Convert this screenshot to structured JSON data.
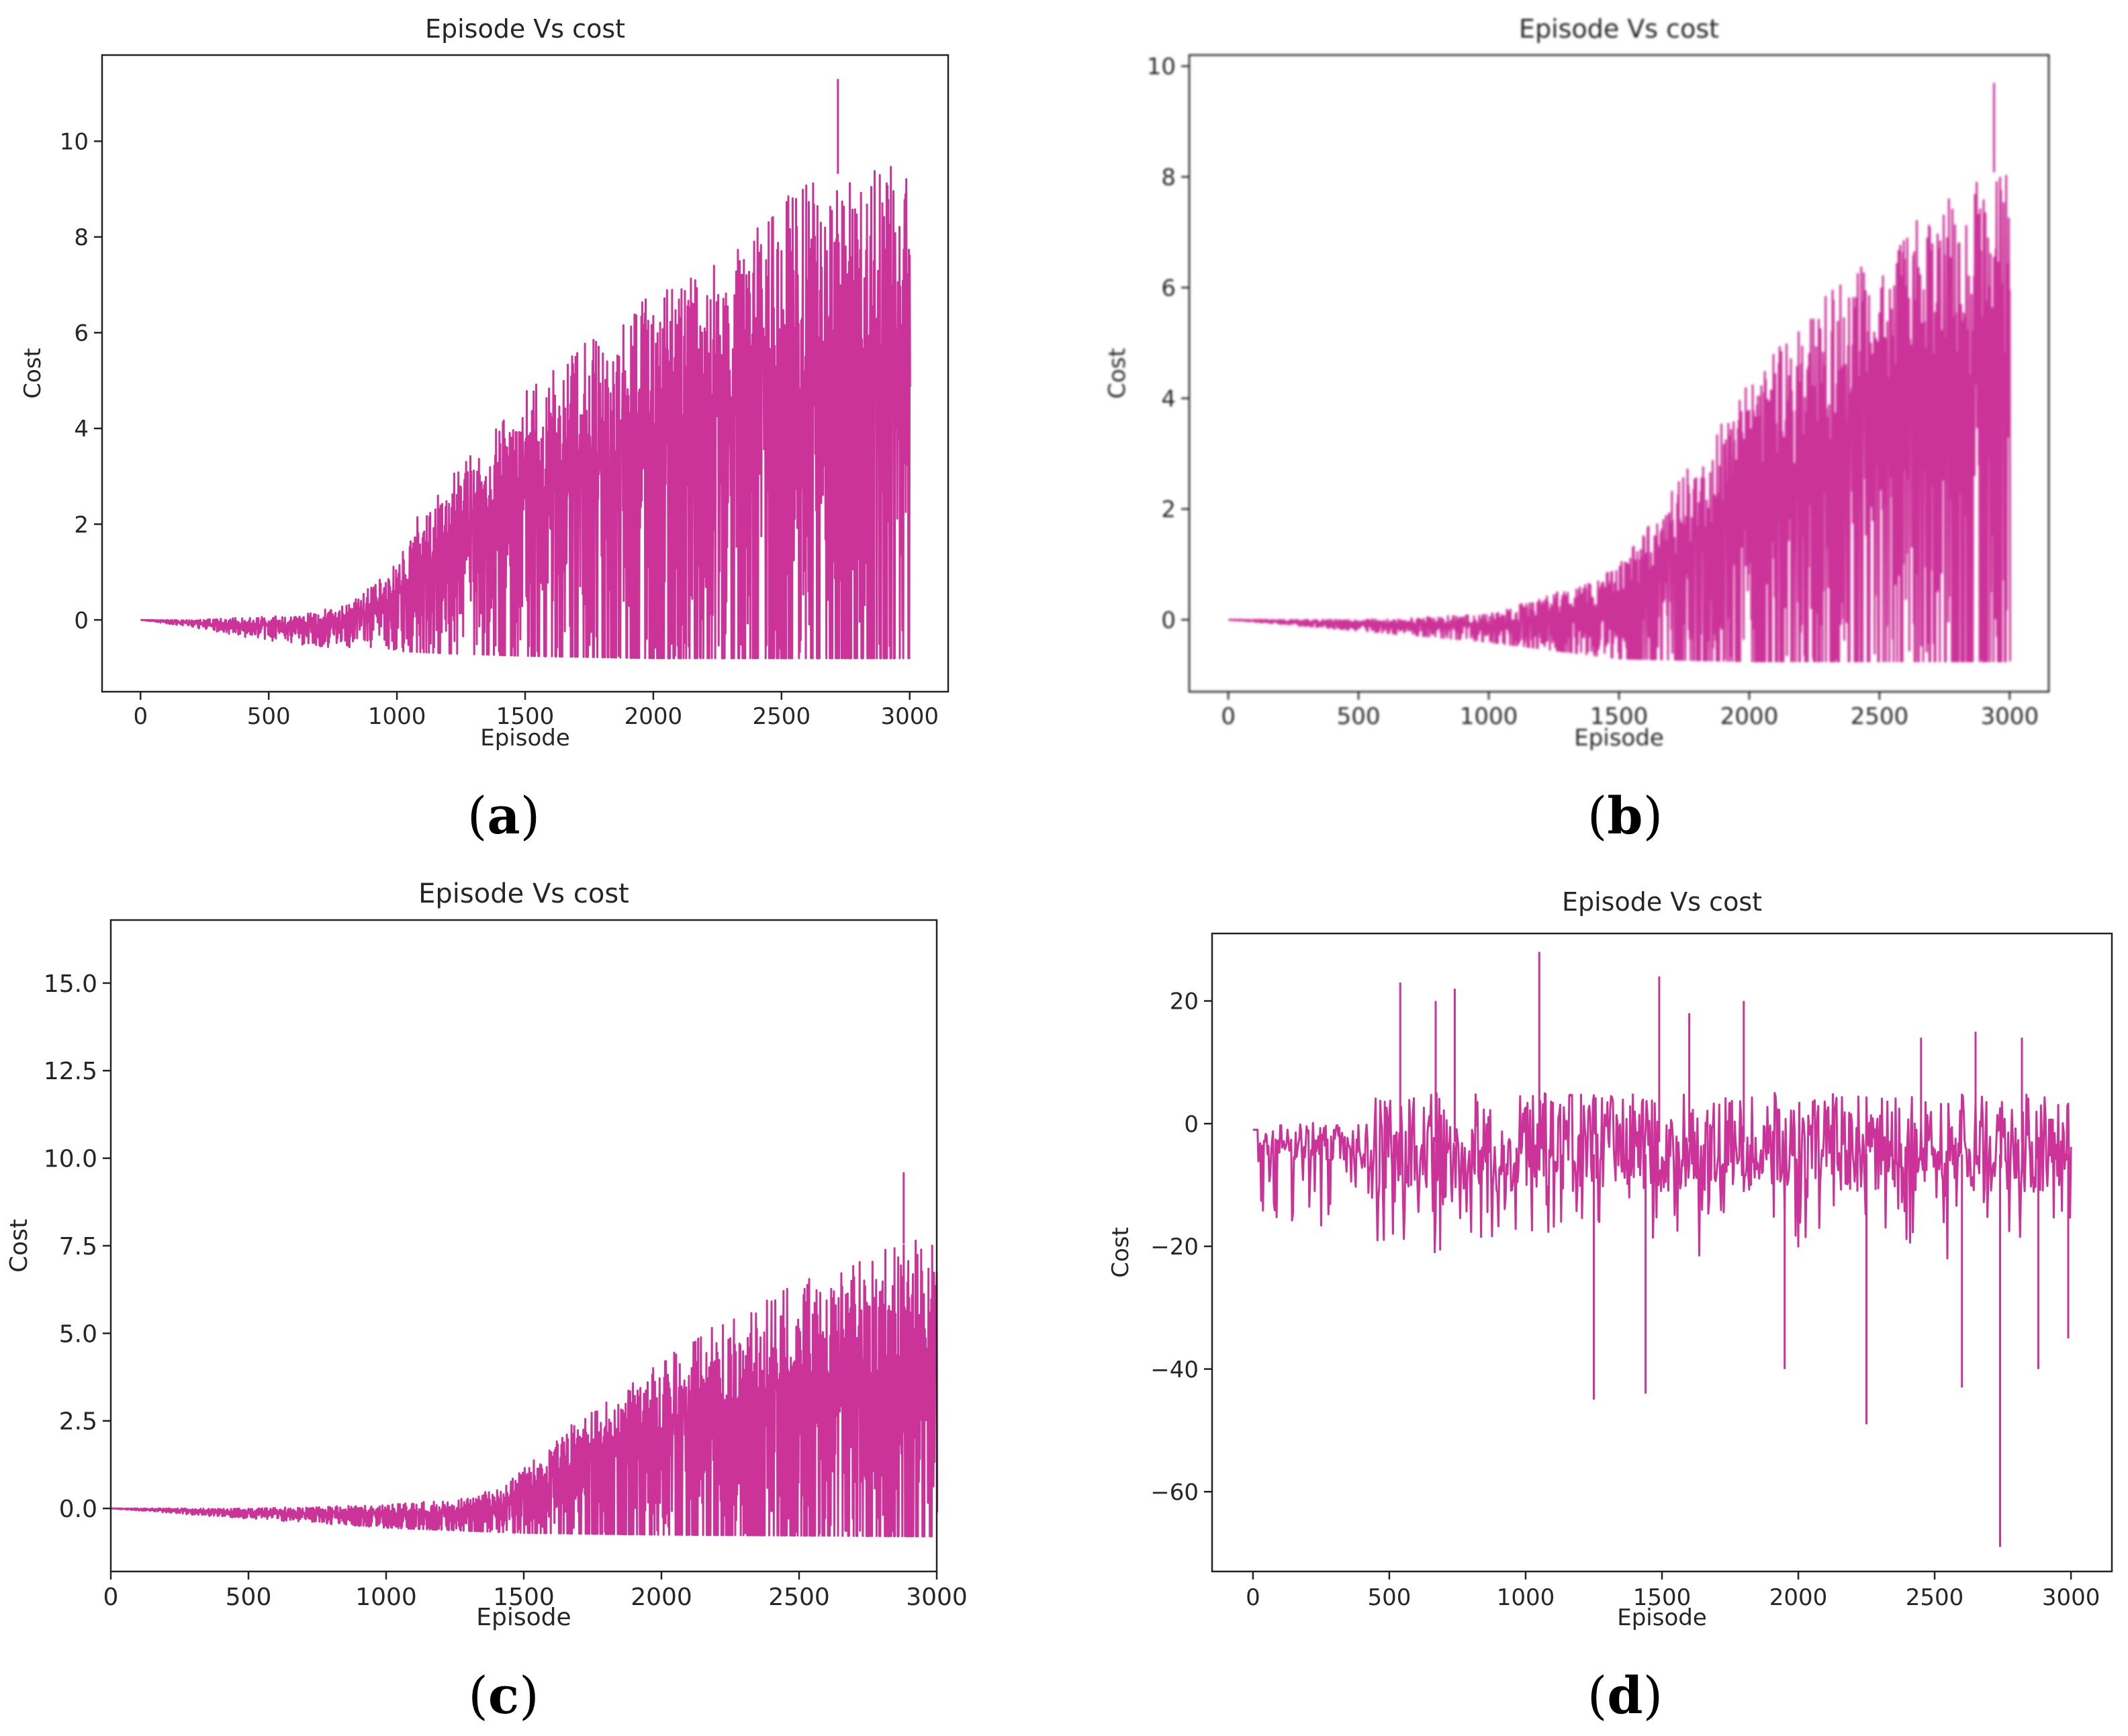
{
  "figure": {
    "captions": [
      "(a)",
      "(b)",
      "(c)",
      "(d)"
    ],
    "caption_letters": [
      "a",
      "b",
      "c",
      "d"
    ],
    "series_color": "#cc3399"
  },
  "chart_data": [
    {
      "id": "a",
      "type": "line",
      "title": "Episode Vs cost",
      "xlabel": "Episode",
      "ylabel": "Cost",
      "xlim": [
        -150,
        3150
      ],
      "ylim": [
        -1.5,
        11.8
      ],
      "xticks": [
        0,
        500,
        1000,
        1500,
        2000,
        2500,
        3000
      ],
      "yticks": [
        0,
        2,
        4,
        6,
        8,
        10
      ],
      "ytick_labels": [
        "0",
        "2",
        "4",
        "6",
        "8",
        "10"
      ],
      "series": [
        {
          "name": "cost",
          "color": "#cc3399",
          "upper_envelope": [
            [
              0,
              0
            ],
            [
              200,
              0
            ],
            [
              400,
              0.05
            ],
            [
              600,
              0.1
            ],
            [
              800,
              0.3
            ],
            [
              900,
              0.7
            ],
            [
              1000,
              1.2
            ],
            [
              1100,
              2.4
            ],
            [
              1200,
              3.0
            ],
            [
              1300,
              3.5
            ],
            [
              1400,
              4.2
            ],
            [
              1500,
              4.8
            ],
            [
              1600,
              5.3
            ],
            [
              1700,
              5.7
            ],
            [
              1800,
              6.1
            ],
            [
              1900,
              6.5
            ],
            [
              2000,
              6.8
            ],
            [
              2100,
              7.1
            ],
            [
              2200,
              7.4
            ],
            [
              2300,
              7.8
            ],
            [
              2400,
              8.3
            ],
            [
              2500,
              8.8
            ],
            [
              2600,
              9.1
            ],
            [
              2700,
              9.3
            ],
            [
              2800,
              9.4
            ],
            [
              2900,
              9.5
            ],
            [
              3000,
              9.6
            ]
          ],
          "lower_envelope": [
            [
              0,
              0
            ],
            [
              200,
              -0.15
            ],
            [
              400,
              -0.35
            ],
            [
              600,
              -0.5
            ],
            [
              800,
              -0.6
            ],
            [
              1000,
              -0.65
            ],
            [
              1200,
              -0.7
            ],
            [
              1500,
              -0.75
            ],
            [
              2000,
              -0.8
            ],
            [
              3000,
              -0.8
            ]
          ],
          "peak": {
            "x": 2720,
            "y": 11.3
          }
        }
      ],
      "blurred": false
    },
    {
      "id": "b",
      "type": "line",
      "title": "Episode Vs cost",
      "xlabel": "Episode",
      "ylabel": "Cost",
      "xlim": [
        -150,
        3150
      ],
      "ylim": [
        -1.3,
        10.2
      ],
      "xticks": [
        0,
        500,
        1000,
        1500,
        2000,
        2500,
        3000
      ],
      "yticks": [
        0,
        2,
        4,
        6,
        8,
        10
      ],
      "ytick_labels": [
        "0",
        "2",
        "4",
        "6",
        "8",
        "10"
      ],
      "series": [
        {
          "name": "cost",
          "color": "#cc3399",
          "upper_envelope": [
            [
              0,
              0
            ],
            [
              500,
              0
            ],
            [
              1000,
              0.1
            ],
            [
              1200,
              0.4
            ],
            [
              1400,
              0.7
            ],
            [
              1500,
              1.0
            ],
            [
              1600,
              1.6
            ],
            [
              1700,
              2.3
            ],
            [
              1800,
              3.0
            ],
            [
              1900,
              3.7
            ],
            [
              2000,
              4.3
            ],
            [
              2100,
              4.9
            ],
            [
              2200,
              5.4
            ],
            [
              2300,
              5.9
            ],
            [
              2400,
              6.4
            ],
            [
              2500,
              6.8
            ],
            [
              2600,
              7.2
            ],
            [
              2700,
              7.5
            ],
            [
              2800,
              7.8
            ],
            [
              2900,
              8.0
            ],
            [
              3000,
              8.2
            ]
          ],
          "lower_envelope": [
            [
              0,
              0
            ],
            [
              500,
              -0.2
            ],
            [
              1000,
              -0.4
            ],
            [
              1500,
              -0.7
            ],
            [
              2000,
              -0.75
            ],
            [
              3000,
              -0.75
            ]
          ],
          "peak": {
            "x": 2940,
            "y": 9.7
          }
        }
      ],
      "blurred": true
    },
    {
      "id": "c",
      "type": "line",
      "title": "Episode Vs cost",
      "xlabel": "Episode",
      "ylabel": "Cost",
      "xlim": [
        0,
        3000
      ],
      "ylim": [
        -1.8,
        16.8
      ],
      "xticks": [
        0,
        500,
        1000,
        1500,
        2000,
        2500,
        3000
      ],
      "yticks": [
        0.0,
        2.5,
        5.0,
        7.5,
        10.0,
        12.5,
        15.0
      ],
      "ytick_labels": [
        "0.0",
        "2.5",
        "5.0",
        "7.5",
        "10.0",
        "12.5",
        "15.0"
      ],
      "series": [
        {
          "name": "cost",
          "color": "#cc3399",
          "upper_envelope": [
            [
              0,
              0
            ],
            [
              500,
              0
            ],
            [
              1000,
              0.1
            ],
            [
              1300,
              0.3
            ],
            [
              1450,
              0.8
            ],
            [
              1550,
              1.5
            ],
            [
              1650,
              2.3
            ],
            [
              1750,
              2.9
            ],
            [
              1850,
              3.4
            ],
            [
              1950,
              3.9
            ],
            [
              2050,
              4.5
            ],
            [
              2150,
              5.0
            ],
            [
              2250,
              5.5
            ],
            [
              2350,
              5.9
            ],
            [
              2450,
              6.3
            ],
            [
              2550,
              6.6
            ],
            [
              2650,
              6.9
            ],
            [
              2750,
              7.2
            ],
            [
              2850,
              7.5
            ],
            [
              3000,
              7.8
            ]
          ],
          "lower_envelope": [
            [
              0,
              0
            ],
            [
              500,
              -0.3
            ],
            [
              1000,
              -0.55
            ],
            [
              1500,
              -0.7
            ],
            [
              2000,
              -0.75
            ],
            [
              3000,
              -0.8
            ]
          ],
          "peak": {
            "x": 2880,
            "y": 9.6
          }
        }
      ],
      "blurred": false
    },
    {
      "id": "d",
      "type": "line",
      "title": "Episode Vs cost",
      "xlabel": "Episode",
      "ylabel": "Cost",
      "xlim": [
        -150,
        3150
      ],
      "ylim": [
        -73,
        31
      ],
      "xticks": [
        0,
        500,
        1000,
        1500,
        2000,
        2500,
        3000
      ],
      "yticks": [
        -60,
        -40,
        -20,
        0,
        20
      ],
      "ytick_labels": [
        "−60",
        "−40",
        "−20",
        "0",
        "20"
      ],
      "series": [
        {
          "name": "cost",
          "color": "#cc3399",
          "band": [
            -12,
            4
          ],
          "spikes_up": [
            [
              540,
              23
            ],
            [
              670,
              20
            ],
            [
              740,
              22
            ],
            [
              1050,
              28
            ],
            [
              1490,
              24
            ],
            [
              1600,
              18
            ],
            [
              1800,
              20
            ],
            [
              2450,
              14
            ],
            [
              2650,
              15
            ],
            [
              2820,
              14
            ]
          ],
          "spikes_down": [
            [
              1250,
              -45
            ],
            [
              1440,
              -44
            ],
            [
              1950,
              -40
            ],
            [
              2250,
              -49
            ],
            [
              2600,
              -43
            ],
            [
              2740,
              -69
            ],
            [
              2880,
              -40
            ],
            [
              2990,
              -35
            ]
          ]
        }
      ],
      "blurred": false
    }
  ]
}
